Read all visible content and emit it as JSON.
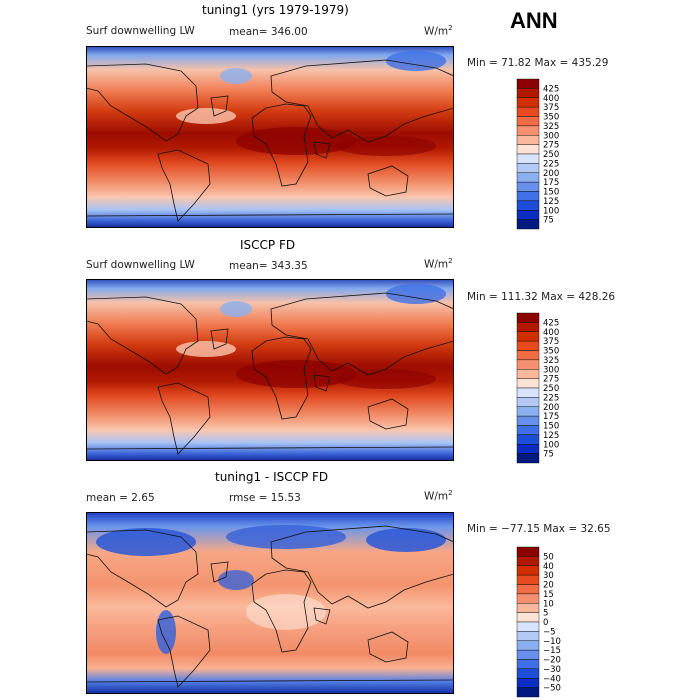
{
  "season": "ANN",
  "chart_data": [
    {
      "type": "heatmap",
      "title": "tuning1 (yrs 1979-1979)",
      "variable": "Surf downwelling LW",
      "mean_text": "mean= 346.00",
      "units_base": "W/m",
      "units_exp": "2",
      "minmax_text": "Min =  71.82 Max = 435.29",
      "min": 71.82,
      "max": 435.29,
      "mean": 346.0,
      "colorbar": {
        "levels": [
          "425",
          "400",
          "375",
          "350",
          "325",
          "300",
          "275",
          "250",
          "225",
          "200",
          "175",
          "150",
          "125",
          "100",
          "75"
        ],
        "colors": [
          "#8b0000",
          "#b01800",
          "#d03000",
          "#e84a20",
          "#f26c46",
          "#f79070",
          "#fbb89c",
          "#fde2d6",
          "#d8e4fb",
          "#b4caf6",
          "#8bb0f0",
          "#6690ea",
          "#4070e6",
          "#1e4ed8",
          "#0c2ec0",
          "#001a80"
        ]
      }
    },
    {
      "type": "heatmap",
      "title": "ISCCP FD",
      "variable": "Surf downwelling LW",
      "mean_text": "mean= 343.35",
      "units_base": "W/m",
      "units_exp": "2",
      "minmax_text": "Min = 111.32 Max = 428.26",
      "min": 111.32,
      "max": 428.26,
      "mean": 343.35,
      "colorbar": {
        "levels": [
          "425",
          "400",
          "375",
          "350",
          "325",
          "300",
          "275",
          "250",
          "225",
          "200",
          "175",
          "150",
          "125",
          "100",
          "75"
        ],
        "colors": [
          "#8b0000",
          "#b01800",
          "#d03000",
          "#e84a20",
          "#f26c46",
          "#f79070",
          "#fbb89c",
          "#fde2d6",
          "#d8e4fb",
          "#b4caf6",
          "#8bb0f0",
          "#6690ea",
          "#4070e6",
          "#1e4ed8",
          "#0c2ec0",
          "#001a80"
        ]
      }
    },
    {
      "type": "heatmap",
      "title": "tuning1 - ISCCP FD",
      "mean_text": "mean =   2.65",
      "rmse_text": "rmse =  15.53",
      "units_base": "W/m",
      "units_exp": "2",
      "minmax_text": "Min = −77.15 Max =  32.65",
      "min": -77.15,
      "max": 32.65,
      "mean": 2.65,
      "rmse": 15.53,
      "colorbar": {
        "levels": [
          "50",
          "40",
          "30",
          "20",
          "15",
          "10",
          "5",
          "0",
          "−5",
          "−10",
          "−15",
          "−20",
          "−30",
          "−40",
          "−50"
        ],
        "colors": [
          "#8b0000",
          "#b01800",
          "#d03000",
          "#e84a20",
          "#f26c46",
          "#f79070",
          "#fbb89c",
          "#fde2d6",
          "#d8e4fb",
          "#b4caf6",
          "#8bb0f0",
          "#6690ea",
          "#4070e6",
          "#1e4ed8",
          "#0c2ec0",
          "#001a80"
        ]
      }
    }
  ]
}
